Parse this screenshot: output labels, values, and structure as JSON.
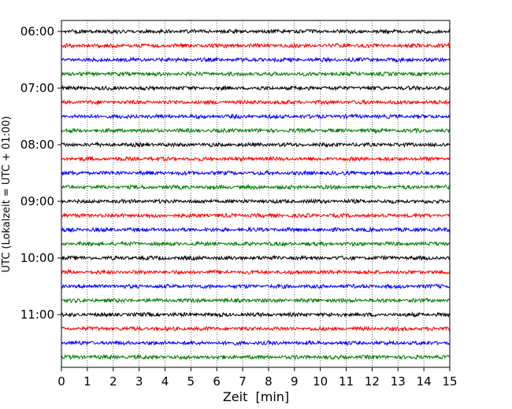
{
  "chart_data": {
    "type": "line",
    "title": "",
    "xlabel": "Zeit  [min]",
    "ylabel": "UTC (Lokalzeit = UTC + 01:00)",
    "xlim": [
      0,
      15
    ],
    "x_ticks": [
      "0",
      "1",
      "2",
      "3",
      "4",
      "5",
      "6",
      "7",
      "8",
      "9",
      "10",
      "11",
      "12",
      "13",
      "14",
      "15"
    ],
    "time_ticks": [
      "06:00",
      "07:00",
      "08:00",
      "09:00",
      "10:00",
      "11:00"
    ],
    "trace_start_offsets_min": [
      0,
      15,
      30,
      45,
      60,
      75,
      90,
      105,
      120,
      135,
      150,
      165,
      180,
      195,
      210,
      225,
      240,
      255,
      270,
      285,
      300,
      315,
      330,
      345
    ],
    "trace_color_cycle": [
      "#000000",
      "#ff0000",
      "#0000ff",
      "#007f00"
    ],
    "grid": "vertical dotted lines at each minute"
  }
}
